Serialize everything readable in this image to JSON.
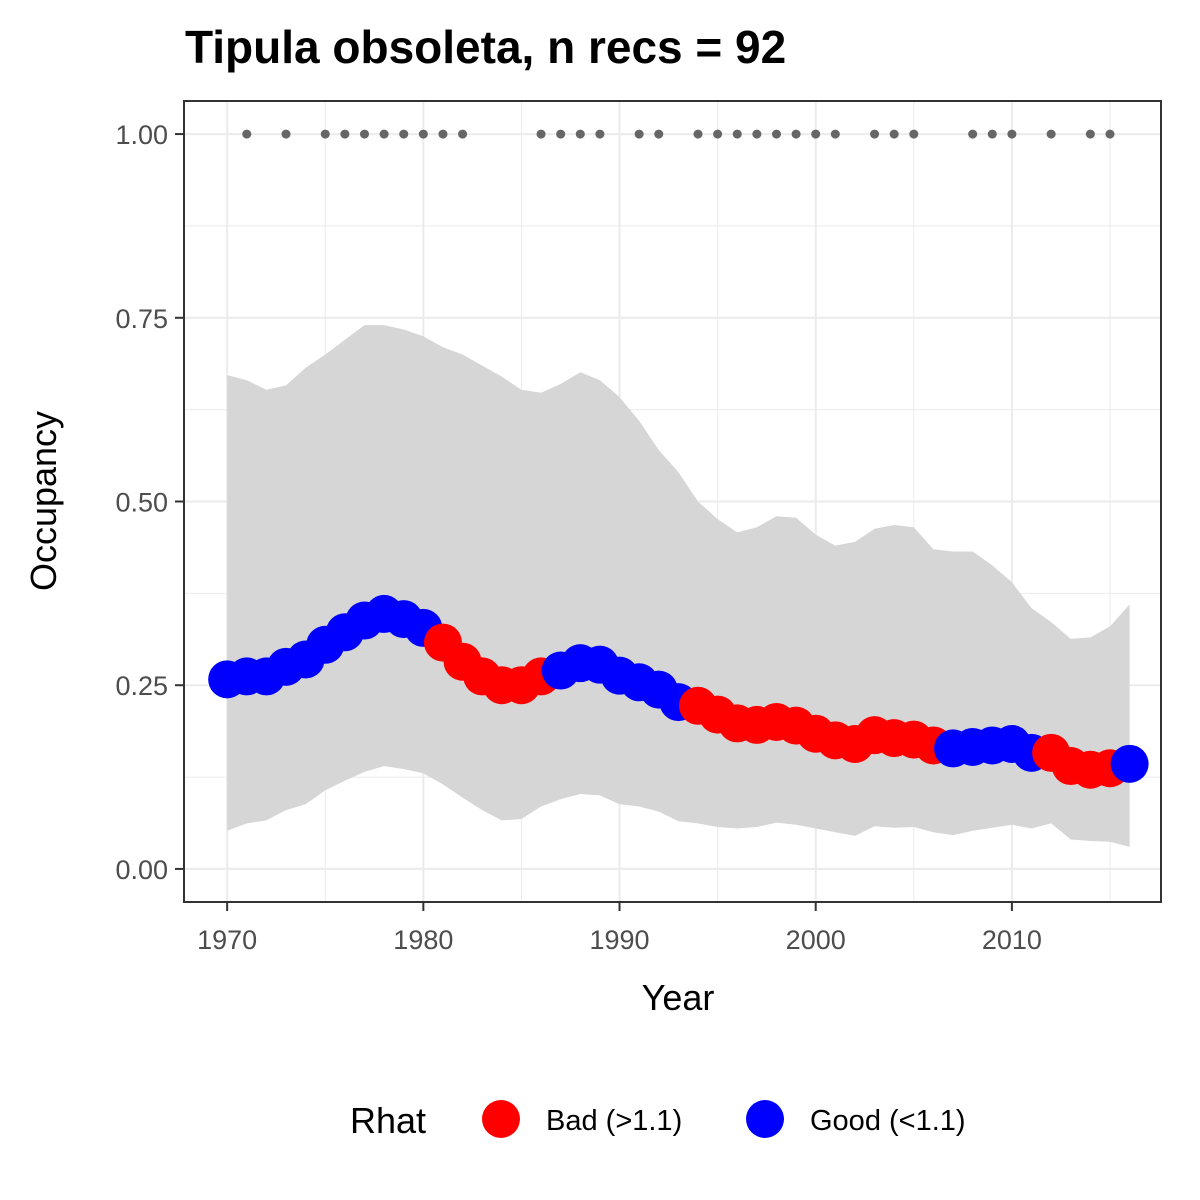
{
  "chart_data": {
    "type": "line",
    "title": "Tipula obsoleta, n recs = 92",
    "xlabel": "Year",
    "ylabel": "Occupancy",
    "xlim": [
      1967.8,
      2017.6
    ],
    "ylim": [
      -0.045,
      1.045
    ],
    "x_ticks": [
      1970,
      1980,
      1990,
      2000,
      2010
    ],
    "x_tick_labels": [
      "1970",
      "1980",
      "1990",
      "2000",
      "2010"
    ],
    "y_ticks": [
      0,
      0.25,
      0.5,
      0.75,
      1.0
    ],
    "y_tick_labels": [
      "0.00",
      "0.25",
      "0.50",
      "0.75",
      "1.00"
    ],
    "grid": true,
    "legend_position": "bottom",
    "legend": {
      "title": "Rhat",
      "entries": [
        {
          "label": "Bad (>1.1)",
          "color": "#ff0000"
        },
        {
          "label": "Good (<1.1)",
          "color": "#0000ff"
        }
      ]
    },
    "colors": {
      "bad": "#ff0000",
      "good": "#0000ff",
      "ribbon": "#d6d6d6",
      "record_dots": "#666666"
    },
    "years": [
      1970,
      1971,
      1972,
      1973,
      1974,
      1975,
      1976,
      1977,
      1978,
      1979,
      1980,
      1981,
      1982,
      1983,
      1984,
      1985,
      1986,
      1987,
      1988,
      1989,
      1990,
      1991,
      1992,
      1993,
      1994,
      1995,
      1996,
      1997,
      1998,
      1999,
      2000,
      2001,
      2002,
      2003,
      2004,
      2005,
      2006,
      2007,
      2008,
      2009,
      2010,
      2011,
      2012,
      2013,
      2014,
      2015,
      2016
    ],
    "occupancy": [
      0.258,
      0.262,
      0.262,
      0.275,
      0.285,
      0.305,
      0.322,
      0.338,
      0.347,
      0.34,
      0.328,
      0.308,
      0.282,
      0.262,
      0.25,
      0.25,
      0.262,
      0.27,
      0.28,
      0.278,
      0.263,
      0.254,
      0.244,
      0.227,
      0.222,
      0.21,
      0.198,
      0.196,
      0.2,
      0.195,
      0.184,
      0.175,
      0.17,
      0.182,
      0.178,
      0.176,
      0.168,
      0.164,
      0.166,
      0.168,
      0.17,
      0.158,
      0.158,
      0.14,
      0.135,
      0.137,
      0.143
    ],
    "rhat": [
      "good",
      "good",
      "good",
      "good",
      "good",
      "good",
      "good",
      "good",
      "good",
      "good",
      "good",
      "bad",
      "bad",
      "bad",
      "bad",
      "bad",
      "bad",
      "good",
      "good",
      "good",
      "good",
      "good",
      "good",
      "good",
      "bad",
      "bad",
      "bad",
      "bad",
      "bad",
      "bad",
      "bad",
      "bad",
      "bad",
      "bad",
      "bad",
      "bad",
      "bad",
      "good",
      "good",
      "good",
      "good",
      "good",
      "bad",
      "bad",
      "bad",
      "bad",
      "good"
    ],
    "upper": [
      0.672,
      0.665,
      0.652,
      0.658,
      0.682,
      0.7,
      0.72,
      0.74,
      0.74,
      0.734,
      0.725,
      0.71,
      0.7,
      0.685,
      0.67,
      0.652,
      0.648,
      0.66,
      0.676,
      0.665,
      0.642,
      0.61,
      0.57,
      0.54,
      0.5,
      0.476,
      0.458,
      0.465,
      0.48,
      0.478,
      0.455,
      0.44,
      0.445,
      0.463,
      0.468,
      0.465,
      0.435,
      0.432,
      0.432,
      0.413,
      0.39,
      0.355,
      0.336,
      0.313,
      0.315,
      0.33,
      0.36
    ],
    "lower": [
      0.052,
      0.062,
      0.066,
      0.08,
      0.088,
      0.107,
      0.12,
      0.132,
      0.14,
      0.136,
      0.13,
      0.115,
      0.097,
      0.08,
      0.066,
      0.068,
      0.085,
      0.095,
      0.102,
      0.1,
      0.088,
      0.085,
      0.078,
      0.065,
      0.062,
      0.057,
      0.055,
      0.057,
      0.063,
      0.06,
      0.055,
      0.05,
      0.045,
      0.058,
      0.056,
      0.057,
      0.05,
      0.046,
      0.052,
      0.056,
      0.06,
      0.055,
      0.062,
      0.04,
      0.038,
      0.037,
      0.03
    ],
    "record_years": [
      1971,
      1973,
      1975,
      1976,
      1977,
      1978,
      1979,
      1980,
      1981,
      1982,
      1986,
      1987,
      1988,
      1989,
      1991,
      1992,
      1994,
      1995,
      1996,
      1997,
      1998,
      1999,
      2000,
      2001,
      2003,
      2004,
      2005,
      2008,
      2009,
      2010,
      2012,
      2014,
      2015
    ],
    "record_value": 1.0
  }
}
